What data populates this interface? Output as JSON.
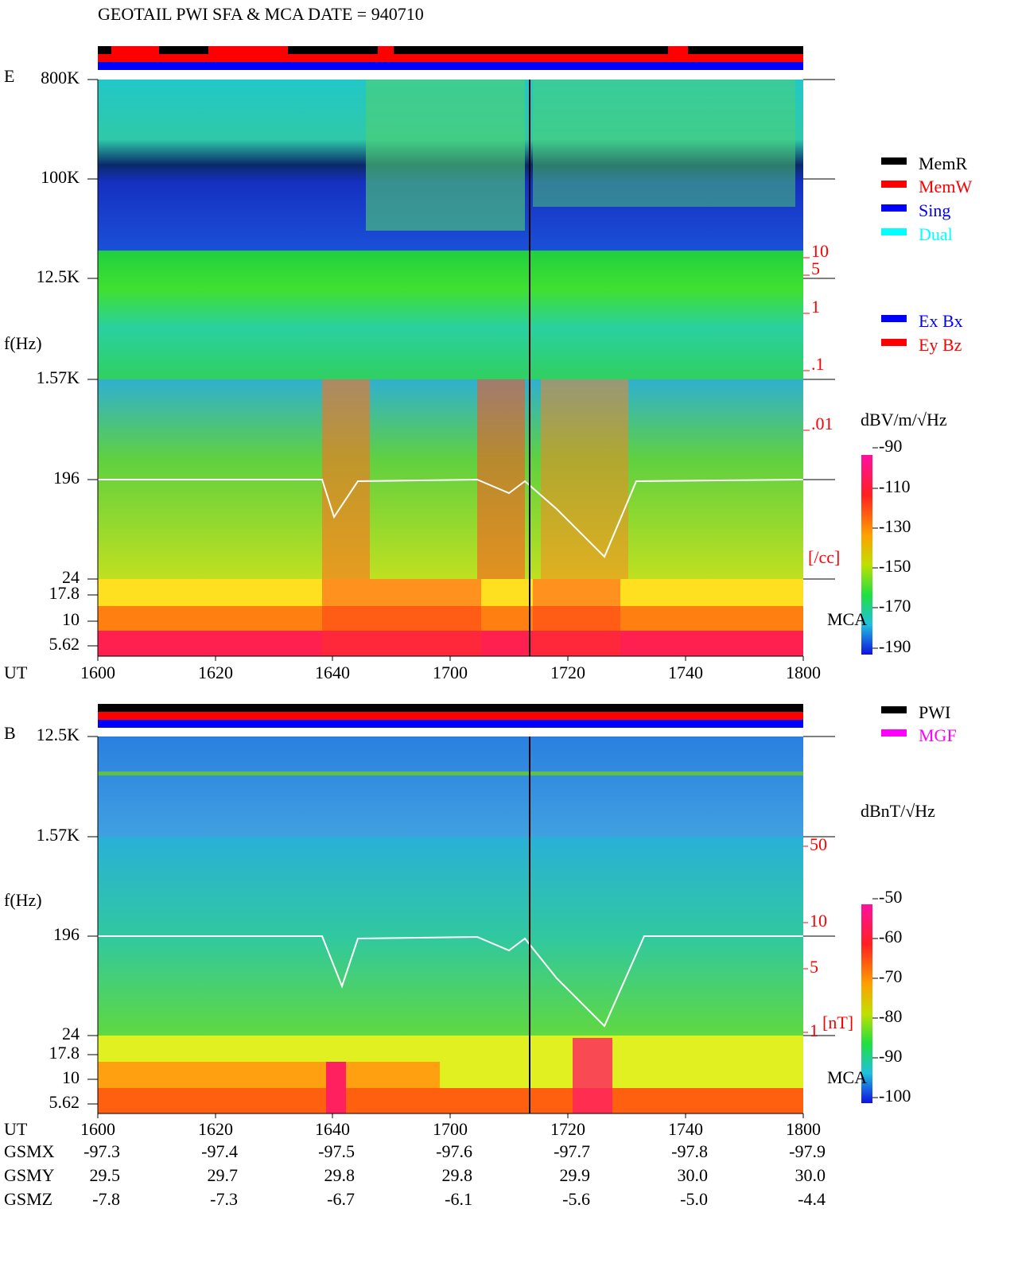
{
  "title": "GEOTAIL  PWI SFA & MCA   DATE = 940710",
  "panel_e": {
    "label": "E",
    "axis_label": "f(Hz)",
    "time_label": "UT",
    "freq_ticks": [
      "800K",
      "100K",
      "12.5K",
      "1.57K",
      "196",
      "24",
      "17.8",
      "10",
      "5.62"
    ],
    "times": [
      "1600",
      "1620",
      "1640",
      "1700",
      "1720",
      "1740",
      "1800"
    ],
    "density_ticks": [
      "10",
      "5",
      "1",
      ".1",
      ".01"
    ],
    "density_unit": "[/cc]",
    "mca": "MCA",
    "legend": [
      "MemR",
      "MemW",
      "Sing",
      "Dual"
    ],
    "component_legend": [
      "Ex Bx",
      "Ey Bz"
    ],
    "colorbar_unit": "dBV/m/√Hz",
    "colorbar_ticks": [
      "-90",
      "-110",
      "-130",
      "-150",
      "-170",
      "-190"
    ]
  },
  "panel_b": {
    "label": "B",
    "axis_label": "f(Hz)",
    "time_label": "UT",
    "freq_ticks": [
      "12.5K",
      "1.57K",
      "196",
      "24",
      "17.8",
      "10",
      "5.62"
    ],
    "times": [
      "1600",
      "1620",
      "1640",
      "1700",
      "1720",
      "1740",
      "1800"
    ],
    "field_ticks": [
      "50",
      "10",
      "5",
      "1"
    ],
    "field_unit": "[nT]",
    "mca": "MCA",
    "legend": [
      "PWI",
      "MGF"
    ],
    "colorbar_unit": "dBnT/√Hz",
    "colorbar_ticks": [
      "-50",
      "-60",
      "-70",
      "-80",
      "-90",
      "-100"
    ]
  },
  "orbit": {
    "rows": [
      {
        "label": "GSMX",
        "values": [
          "-97.3",
          "-97.4",
          "-97.5",
          "-97.6",
          "-97.7",
          "-97.8",
          "-97.9"
        ]
      },
      {
        "label": "GSMY",
        "values": [
          "29.5",
          "29.7",
          "29.8",
          "29.8",
          "29.9",
          "30.0",
          "30.0"
        ]
      },
      {
        "label": "GSMZ",
        "values": [
          "-7.8",
          "-7.3",
          "-6.7",
          "-6.1",
          "-5.6",
          "-5.0",
          "-4.4"
        ]
      }
    ]
  }
}
